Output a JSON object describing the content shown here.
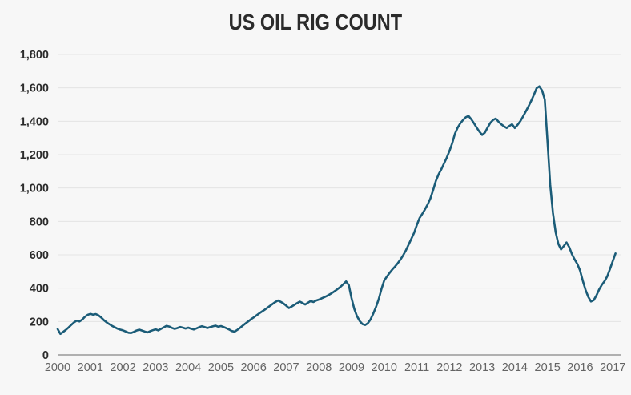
{
  "chart_data": {
    "type": "line",
    "title": "US OIL RIG COUNT",
    "xlabel": "",
    "ylabel": "",
    "legend": "none",
    "grid": "horizontal-only",
    "xlim": [
      2000,
      2017.24
    ],
    "ylim": [
      0,
      1800
    ],
    "x_start": 2000.0,
    "x_step_years": 0.0833333,
    "points_interval": "monthly",
    "x_ticks": [
      {
        "v": 2000,
        "label": "2000"
      },
      {
        "v": 2001,
        "label": "2001"
      },
      {
        "v": 2002,
        "label": "2002"
      },
      {
        "v": 2003,
        "label": "2003"
      },
      {
        "v": 2004,
        "label": "2004"
      },
      {
        "v": 2005,
        "label": "2005"
      },
      {
        "v": 2006,
        "label": "2006"
      },
      {
        "v": 2007,
        "label": "2007"
      },
      {
        "v": 2008,
        "label": "2008"
      },
      {
        "v": 2009,
        "label": "2009"
      },
      {
        "v": 2010,
        "label": "2010"
      },
      {
        "v": 2011,
        "label": "2011"
      },
      {
        "v": 2012,
        "label": "2012"
      },
      {
        "v": 2013,
        "label": "2013"
      },
      {
        "v": 2014,
        "label": "2014"
      },
      {
        "v": 2015,
        "label": "2015"
      },
      {
        "v": 2016,
        "label": "2016"
      },
      {
        "v": 2017,
        "label": "2017"
      }
    ],
    "y_ticks": [
      {
        "v": 0,
        "label": "0"
      },
      {
        "v": 200,
        "label": "200"
      },
      {
        "v": 400,
        "label": "400"
      },
      {
        "v": 600,
        "label": "600"
      },
      {
        "v": 800,
        "label": "800"
      },
      {
        "v": 1000,
        "label": "1,000"
      },
      {
        "v": 1200,
        "label": "1,200"
      },
      {
        "v": 1400,
        "label": "1,400"
      },
      {
        "v": 1600,
        "label": "1,600"
      },
      {
        "v": 1800,
        "label": "1,800"
      }
    ],
    "series": [
      {
        "name": "US oil rig count",
        "values": [
          155,
          126,
          138,
          150,
          164,
          180,
          195,
          205,
          200,
          211,
          228,
          240,
          246,
          241,
          245,
          237,
          224,
          208,
          195,
          184,
          174,
          165,
          157,
          151,
          147,
          140,
          133,
          131,
          138,
          146,
          151,
          146,
          140,
          135,
          142,
          148,
          153,
          147,
          156,
          165,
          174,
          170,
          162,
          156,
          161,
          167,
          163,
          158,
          163,
          157,
          152,
          159,
          166,
          172,
          167,
          161,
          166,
          171,
          175,
          169,
          173,
          167,
          160,
          152,
          143,
          139,
          150,
          162,
          175,
          188,
          200,
          213,
          224,
          236,
          248,
          259,
          270,
          282,
          294,
          306,
          317,
          326,
          318,
          308,
          295,
          281,
          290,
          300,
          310,
          319,
          311,
          302,
          313,
          323,
          317,
          326,
          331,
          339,
          346,
          354,
          363,
          373,
          384,
          396,
          409,
          424,
          440,
          418,
          340,
          276,
          232,
          203,
          185,
          179,
          190,
          213,
          248,
          288,
          335,
          395,
          446,
          470,
          492,
          512,
          530,
          550,
          572,
          598,
          628,
          662,
          697,
          732,
          778,
          820,
          845,
          872,
          902,
          938,
          988,
          1042,
          1082,
          1112,
          1147,
          1182,
          1222,
          1268,
          1325,
          1362,
          1388,
          1408,
          1424,
          1432,
          1412,
          1388,
          1362,
          1338,
          1318,
          1332,
          1362,
          1390,
          1408,
          1416,
          1398,
          1382,
          1370,
          1360,
          1372,
          1382,
          1360,
          1378,
          1400,
          1428,
          1458,
          1488,
          1522,
          1558,
          1598,
          1609,
          1585,
          1530,
          1280,
          1020,
          850,
          735,
          665,
          632,
          652,
          674,
          646,
          604,
          572,
          545,
          505,
          444,
          390,
          348,
          320,
          328,
          356,
          392,
          420,
          442,
          472,
          516,
          562,
          608
        ]
      }
    ],
    "colors": {
      "line": "#1b5c78",
      "grid": "#e4e4e4",
      "axis": "#b0b0b0",
      "background": "#f7f7f7",
      "title_text": "#2b2b2b",
      "y_tick_text": "#2b2b2b",
      "x_tick_text": "#646464"
    }
  }
}
